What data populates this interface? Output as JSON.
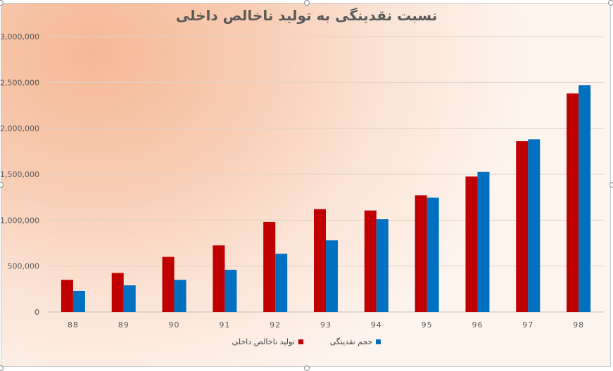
{
  "chart_data": {
    "type": "bar",
    "title": "نسبت نقدینگی به تولید ناخالص داخلی",
    "categories": [
      "88",
      "89",
      "90",
      "91",
      "92",
      "93",
      "94",
      "95",
      "96",
      "97",
      "98"
    ],
    "series": [
      {
        "name": "تولید ناخالص داخلی",
        "color": "#c00000",
        "values": [
          350000,
          425000,
          600000,
          725000,
          980000,
          1120000,
          1105000,
          1270000,
          1475000,
          1860000,
          2380000
        ]
      },
      {
        "name": "حجم نقدینگی",
        "color": "#0070c0",
        "values": [
          230000,
          290000,
          350000,
          460000,
          635000,
          780000,
          1010000,
          1245000,
          1525000,
          1880000,
          2470000
        ]
      }
    ],
    "ylim": [
      0,
      3000000
    ],
    "yticks": [
      "0",
      "500,000",
      "1,000,000",
      "1,500,000",
      "2,000,000",
      "2,500,000",
      "3,000,000"
    ],
    "grid": true,
    "legend_position": "bottom",
    "xlabel": "",
    "ylabel": ""
  }
}
